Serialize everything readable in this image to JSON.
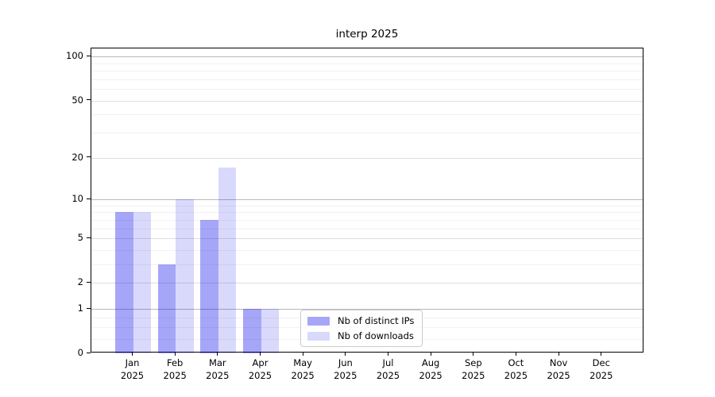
{
  "title": "interp 2025",
  "legend": {
    "items": [
      {
        "label": "Nb of distinct IPs",
        "color": "rgba(0,0,235,0.35)"
      },
      {
        "label": "Nb of downloads",
        "color": "rgba(0,0,235,0.15)"
      }
    ],
    "position": "lower center"
  },
  "chart_data": {
    "type": "bar",
    "title": "interp 2025",
    "categories": [
      "Jan",
      "Feb",
      "Mar",
      "Apr",
      "May",
      "Jun",
      "Jul",
      "Aug",
      "Sep",
      "Oct",
      "Nov",
      "Dec"
    ],
    "x_tick_second_line": "2025",
    "series": [
      {
        "name": "Nb of distinct IPs",
        "color": "rgba(0,0,235,0.35)",
        "values": [
          8,
          3,
          7,
          1,
          0,
          0,
          0,
          0,
          0,
          0,
          0,
          0
        ]
      },
      {
        "name": "Nb of downloads",
        "color": "rgba(0,0,235,0.15)",
        "values": [
          8,
          10,
          17,
          1,
          0,
          0,
          0,
          0,
          0,
          0,
          0,
          0
        ]
      }
    ],
    "xlabel": "",
    "ylabel": "",
    "y_ticks": [
      0,
      1,
      2,
      5,
      10,
      20,
      50,
      100
    ],
    "y_scale": "log1p",
    "ylim": [
      0,
      114
    ],
    "grid": true,
    "legend_position": "lower center"
  }
}
